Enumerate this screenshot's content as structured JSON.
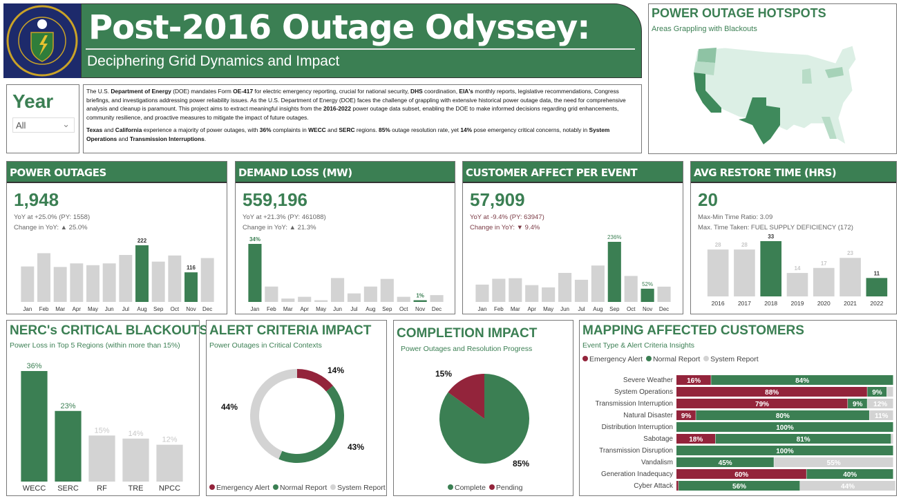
{
  "header": {
    "title": "Post-2016 Outage Odyssey:",
    "subtitle": "Deciphering Grid Dynamics and Impact",
    "logo_text": "DEPARTMENT OF ENERGY · UNITED STATES OF AMERICA"
  },
  "year_filter": {
    "label": "Year",
    "value": "All"
  },
  "description": {
    "paragraphs": [
      [
        [
          "The U.S. ",
          0
        ],
        [
          "Department of Energy",
          1
        ],
        [
          " (DOE) mandates Form ",
          0
        ],
        [
          "OE-417",
          1
        ],
        [
          " for electric emergency reporting, crucial for national security, ",
          0
        ],
        [
          "DHS",
          1
        ],
        [
          " coordination, ",
          0
        ],
        [
          "EIA's",
          1
        ],
        [
          " monthly reports, legislative recommendations, Congress briefings, and investigations addressing power reliability issues. As the U.S. Department of Energy (DOE) faces the challenge of grappling with extensive historical power outage data, the need for comprehensive analysis and cleanup is paramount. This project aims to extract meaningful insights from the ",
          0
        ],
        [
          "2016-2022",
          1
        ],
        [
          " power outage data subset, enabling the DOE to make informed decisions regarding grid enhancements, community resilience, and proactive measures to mitigate the impact of future outages.",
          0
        ]
      ],
      [
        [
          "Texas",
          1
        ],
        [
          " and ",
          0
        ],
        [
          "California",
          1
        ],
        [
          " experience a majority of power outages, with ",
          0
        ],
        [
          "36%",
          1
        ],
        [
          " complaints in ",
          0
        ],
        [
          "WECC",
          1
        ],
        [
          " and ",
          0
        ],
        [
          "SERC",
          1
        ],
        [
          " regions. ",
          0
        ],
        [
          "85%",
          1
        ],
        [
          " outage resolution rate, yet ",
          0
        ],
        [
          "14%",
          1
        ],
        [
          " pose emergency critical concerns, notably in ",
          0
        ],
        [
          "System Operations",
          1
        ],
        [
          " and ",
          0
        ],
        [
          "Transmission Interruptions",
          1
        ],
        [
          ".",
          0
        ]
      ]
    ]
  },
  "hotspots": {
    "title": "POWER OUTAGE HOTSPOTS",
    "subtitle": "Areas Grappling with Blackouts"
  },
  "colors": {
    "green": "#3b7f53",
    "red": "#93243b",
    "gray": "#d3d3d3"
  },
  "kpis": [
    {
      "title": "POWER OUTAGES",
      "value": "1,948",
      "line1": "YoY at +25.0% (PY: 1558)",
      "line2": "Change in YoY: ▲ 25.0%"
    },
    {
      "title": "DEMAND LOSS (MW)",
      "value": "559,196",
      "line1": "YoY at +21.3% (PY: 461088)",
      "line2": "Change in YoY: ▲ 21.3%"
    },
    {
      "title": "CUSTOMER AFFECT PER EVENT",
      "value": "57,909",
      "line1": "YoY at -9.4% (PY: 63947)",
      "line2": "Change in YoY: ▼ 9.4%"
    },
    {
      "title": "AVG RESTORE TIME (HRS)",
      "value": "20",
      "line1": "Max-Min Time Ratio: 3.09",
      "line2": "Max. Time Taken: FUEL SUPPLY DEFICIENCY (172)"
    }
  ],
  "chart_data": [
    {
      "type": "bar",
      "title": "POWER OUTAGES",
      "categories": [
        "Jan",
        "Feb",
        "Mar",
        "Apr",
        "May",
        "Jun",
        "Jul",
        "Aug",
        "Sep",
        "Oct",
        "Nov",
        "Dec"
      ],
      "values": [
        139,
        191,
        137,
        151,
        144,
        151,
        184,
        222,
        158,
        182,
        116,
        172
      ],
      "highlight": [
        7,
        10
      ],
      "labels": {
        "7": "222",
        "10": "116"
      }
    },
    {
      "type": "bar",
      "title": "DEMAND LOSS (MW)",
      "unit": "%",
      "categories": [
        "Jan",
        "Feb",
        "Mar",
        "Apr",
        "May",
        "Jun",
        "Jul",
        "Aug",
        "Sep",
        "Oct",
        "Nov",
        "Dec"
      ],
      "values": [
        34,
        9,
        2,
        3,
        1,
        14,
        5,
        9,
        13.5,
        3,
        1,
        4
      ],
      "highlight": [
        0,
        10
      ],
      "labels": {
        "0": "34%",
        "10": "1%"
      }
    },
    {
      "type": "bar",
      "title": "CUSTOMER AFFECT PER EVENT",
      "unit": "%",
      "categories": [
        "Jan",
        "Feb",
        "Mar",
        "Apr",
        "May",
        "Jun",
        "Jul",
        "Aug",
        "Sep",
        "Oct",
        "Nov",
        "Dec"
      ],
      "values": [
        68,
        91,
        93,
        66,
        57,
        114,
        87,
        143,
        236,
        102,
        52,
        60
      ],
      "highlight": [
        8,
        10
      ],
      "labels": {
        "8": "236%",
        "10": "52%"
      }
    },
    {
      "type": "bar",
      "title": "AVG RESTORE TIME (HRS)",
      "categories": [
        "2016",
        "2017",
        "2018",
        "2019",
        "2020",
        "2021",
        "2022"
      ],
      "values": [
        28,
        28,
        33,
        14,
        17,
        23,
        11
      ],
      "highlight": [
        2,
        6
      ],
      "labels": {
        "0": "28",
        "1": "28",
        "2": "33",
        "3": "14",
        "4": "17",
        "5": "23",
        "6": "11"
      }
    },
    {
      "type": "bar",
      "title": "NERC's CRITICAL BLACKOUTS",
      "subtitle": "Power Loss in Top 5 Regions (within more than 15%)",
      "categories": [
        "WECC",
        "SERC",
        "RF",
        "TRE",
        "NPCC"
      ],
      "values": [
        36,
        23,
        15,
        14,
        12
      ],
      "labels": [
        "36%",
        "23%",
        "15%",
        "14%",
        "12%"
      ],
      "highlight": [
        0,
        1
      ]
    },
    {
      "type": "pie",
      "donut": true,
      "title": "ALERT CRITERIA IMPACT",
      "subtitle": "Power Outages in Critical Contexts",
      "slices": [
        {
          "name": "Emergency Alert",
          "value": 14,
          "label": "14%"
        },
        {
          "name": "Normal Report",
          "value": 43,
          "label": "43%"
        },
        {
          "name": "System Report",
          "value": 44,
          "label": "44%"
        }
      ],
      "legend": "bottom"
    },
    {
      "type": "pie",
      "title": "COMPLETION IMPACT",
      "subtitle": "Power Outages and Resolution Progress",
      "slices": [
        {
          "name": "Complete",
          "value": 85,
          "label": "85%"
        },
        {
          "name": "Pending",
          "value": 15,
          "label": "15%"
        }
      ],
      "legend": "bottom"
    },
    {
      "type": "bar",
      "stacked": true,
      "orientation": "horizontal",
      "title": "MAPPING AFFECTED CUSTOMERS",
      "subtitle": "Event Type & Alert Criteria Insights",
      "series_names": [
        "Emergency Alert",
        "Normal Report",
        "System Report"
      ],
      "categories": [
        "Severe Weather",
        "System Operations",
        "Transmission Interruption",
        "Natural Disaster",
        "Distribution Interruption",
        "Sabotage",
        "Transmission Disruption",
        "Vandalism",
        "Generation Inadequacy",
        "Cyber Attack"
      ],
      "series": [
        {
          "name": "Emergency Alert",
          "values": [
            16,
            88,
            79,
            9,
            0,
            18,
            0,
            0,
            60,
            1
          ]
        },
        {
          "name": "Normal Report",
          "values": [
            84,
            9,
            9,
            80,
            100,
            81,
            100,
            45,
            40,
            56
          ]
        },
        {
          "name": "System Report",
          "values": [
            0,
            3,
            12,
            11,
            0,
            1,
            0,
            55,
            0,
            44
          ]
        }
      ],
      "labels": [
        [
          "16%",
          "84%",
          ""
        ],
        [
          "88%",
          "9%",
          ""
        ],
        [
          "79%",
          "9%",
          "12%"
        ],
        [
          "9%",
          "80%",
          "11%"
        ],
        [
          "",
          "100%",
          ""
        ],
        [
          "18%",
          "81%",
          ""
        ],
        [
          "",
          "100%",
          ""
        ],
        [
          "",
          "45%",
          "55%"
        ],
        [
          "60%",
          "40%",
          ""
        ],
        [
          "",
          "56%",
          "44%"
        ]
      ],
      "legend": "top-left"
    }
  ]
}
